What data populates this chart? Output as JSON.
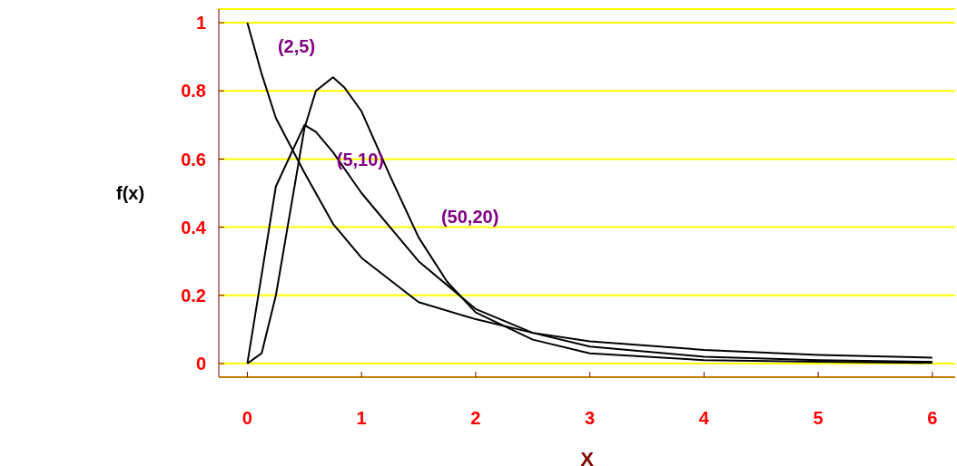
{
  "chart_data": {
    "type": "line",
    "xlabel": "X",
    "ylabel": "f(x)",
    "xlim": [
      -0.25,
      6.2
    ],
    "ylim": [
      -0.04,
      1.04
    ],
    "xticks": [
      0,
      1,
      2,
      3,
      4,
      5,
      6
    ],
    "yticks": [
      0,
      0.2,
      0.4,
      0.6,
      0.8,
      1
    ],
    "grid": "y",
    "marker": "none",
    "line_style": "solid",
    "series": [
      {
        "name": "(2,5)",
        "color": "#000000",
        "x": [
          0,
          0.125,
          0.25,
          0.5,
          0.75,
          1,
          1.5,
          2,
          2.5,
          3,
          4,
          5,
          6
        ],
        "values": [
          1,
          0.85,
          0.72,
          0.56,
          0.41,
          0.31,
          0.18,
          0.13,
          0.09,
          0.065,
          0.04,
          0.025,
          0.017
        ]
      },
      {
        "name": "(5,10)",
        "color": "#000000",
        "x": [
          0,
          0.25,
          0.5,
          0.6,
          0.75,
          1,
          1.5,
          2,
          2.5,
          3,
          4,
          5,
          6
        ],
        "values": [
          0,
          0.52,
          0.7,
          0.68,
          0.62,
          0.5,
          0.3,
          0.16,
          0.09,
          0.05,
          0.02,
          0.01,
          0.005
        ]
      },
      {
        "name": "(50,20)",
        "color": "#000000",
        "x": [
          0,
          0.125,
          0.25,
          0.5,
          0.6,
          0.75,
          0.85,
          1,
          1.25,
          1.5,
          1.75,
          2,
          2.5,
          3,
          4,
          5,
          6
        ],
        "values": [
          0,
          0.03,
          0.2,
          0.69,
          0.8,
          0.84,
          0.81,
          0.74,
          0.55,
          0.37,
          0.24,
          0.15,
          0.07,
          0.03,
          0.01,
          0.005,
          0.002
        ]
      }
    ]
  }
}
